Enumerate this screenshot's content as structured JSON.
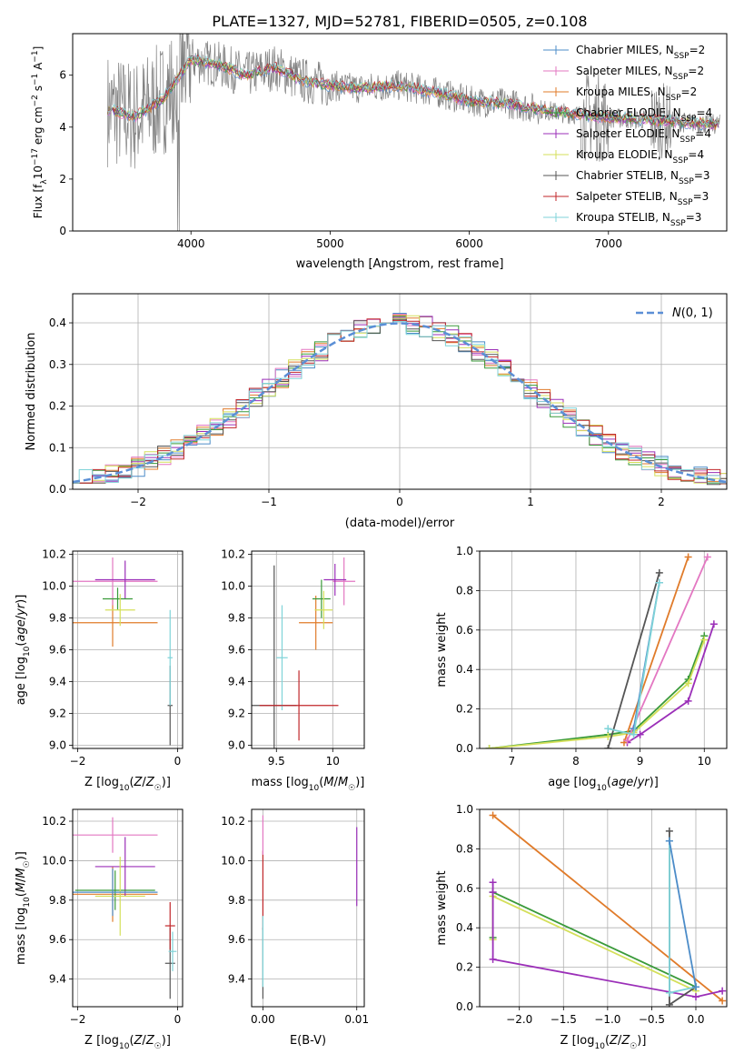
{
  "figure_title": "PLATE=1327, MJD=52781, FIBERID=0505, z=0.108",
  "legend_entries": [
    {
      "label": "Chabrier MILES, N",
      "sub": "SSP",
      "suffix": "=2",
      "color": "#4c8cc8"
    },
    {
      "label": "Salpeter MILES, N",
      "sub": "SSP",
      "suffix": "=2",
      "color": "#e377c2"
    },
    {
      "label": "Kroupa MILES, N",
      "sub": "SSP",
      "suffix": "=2",
      "color": "#e07b2a"
    },
    {
      "label": "Chabrier ELODIE, N",
      "sub": "SSP",
      "suffix": "=4",
      "color": "#3a9a3a"
    },
    {
      "label": "Salpeter ELODIE, N",
      "sub": "SSP",
      "suffix": "=4",
      "color": "#9b2fb8"
    },
    {
      "label": "Kroupa ELODIE, N",
      "sub": "SSP",
      "suffix": "=4",
      "color": "#d4df5a"
    },
    {
      "label": "Chabrier STELIB, N",
      "sub": "SSP",
      "suffix": "=3",
      "color": "#555555"
    },
    {
      "label": "Salpeter STELIB, N",
      "sub": "SSP",
      "suffix": "=3",
      "color": "#c0262a"
    },
    {
      "label": "Kroupa STELIB, N",
      "sub": "SSP",
      "suffix": "=3",
      "color": "#7fd3d8"
    }
  ],
  "chart_data": [
    {
      "id": "spectrum",
      "type": "line",
      "xlabel": "wavelength [Angstrom, rest frame]",
      "ylabel": "Flux [f",
      "ylabel_parts": [
        "Flux [f",
        "λ",
        "10",
        "−17",
        " erg cm",
        "−2",
        " s",
        "−1",
        " A",
        "−1",
        "]"
      ],
      "xlim": [
        3150,
        7850
      ],
      "ylim": [
        0,
        7.6
      ],
      "xticks": [
        4000,
        5000,
        6000,
        7000
      ],
      "yticks": [
        0,
        2,
        4,
        6
      ],
      "grid": false,
      "legend_position": "right",
      "data_color": "#808080",
      "x_start": 3400,
      "x_end": 7800,
      "continuum_points": [
        [
          3400,
          4.7
        ],
        [
          3600,
          4.4
        ],
        [
          3800,
          5.1
        ],
        [
          4000,
          6.6
        ],
        [
          4200,
          6.4
        ],
        [
          4400,
          6.0
        ],
        [
          4600,
          6.3
        ],
        [
          4800,
          5.8
        ],
        [
          5000,
          5.6
        ],
        [
          5200,
          5.5
        ],
        [
          5500,
          5.6
        ],
        [
          5800,
          5.3
        ],
        [
          6000,
          5.0
        ],
        [
          6300,
          4.9
        ],
        [
          6600,
          4.6
        ],
        [
          6900,
          4.4
        ],
        [
          7200,
          4.3
        ],
        [
          7500,
          4.2
        ],
        [
          7800,
          4.1
        ]
      ]
    },
    {
      "id": "residuals",
      "type": "step",
      "xlabel": "(data-model)/error",
      "ylabel": "Normed distribution",
      "xlim": [
        -2.5,
        2.5
      ],
      "ylim": [
        0,
        0.47
      ],
      "xticks": [
        -2,
        -1,
        0,
        1,
        2
      ],
      "yticks": [
        0.0,
        0.1,
        0.2,
        0.3,
        0.4
      ],
      "grid": true,
      "legend": {
        "label": "N(0, 1)",
        "position": "top-right",
        "color": "#5b8fd6"
      },
      "bin_width": 0.1
    },
    {
      "id": "age_vs_z",
      "type": "errorbar",
      "xlabel": "Z [log10(Z/Z☉)]",
      "ylabel": "age [log10(age/yr)]",
      "xlim": [
        -2.1,
        0.1
      ],
      "ylim": [
        8.98,
        10.22
      ],
      "xticks": [
        -2,
        0
      ],
      "yticks": [
        9.0,
        9.2,
        9.4,
        9.6,
        9.8,
        10.0,
        10.2
      ],
      "grid": true,
      "points": [
        {
          "x": -1.3,
          "y": 9.77,
          "xerr": 0.9,
          "yerr": 0.15,
          "color": "#e07b2a"
        },
        {
          "x": -1.3,
          "y": 10.03,
          "xerr": 0.9,
          "yerr": 0.15,
          "color": "#e377c2"
        },
        {
          "x": -1.05,
          "y": 10.04,
          "xerr": 0.6,
          "yerr": 0.12,
          "color": "#9b2fb8"
        },
        {
          "x": -1.2,
          "y": 9.92,
          "xerr": 0.3,
          "yerr": 0.07,
          "color": "#3a9a3a"
        },
        {
          "x": -1.15,
          "y": 9.85,
          "xerr": 0.3,
          "yerr": 0.1,
          "color": "#d4df5a"
        },
        {
          "x": -0.15,
          "y": 9.25,
          "xerr": 0.05,
          "yerr": 0.25,
          "color": "#555555"
        },
        {
          "x": -0.15,
          "y": 9.55,
          "xerr": 0.05,
          "yerr": 0.3,
          "color": "#7fd3d8"
        }
      ]
    },
    {
      "id": "age_vs_mass",
      "type": "errorbar",
      "xlabel": "mass [log10(M/M☉)]",
      "ylabel": "",
      "xlim": [
        9.28,
        10.28
      ],
      "ylim": [
        8.98,
        10.22
      ],
      "xticks": [
        9.5,
        10.0
      ],
      "yticks": [
        9.0,
        9.2,
        9.4,
        9.6,
        9.8,
        10.0,
        10.2
      ],
      "grid": true,
      "points": [
        {
          "x": 9.48,
          "y": 9.25,
          "xerr": 0.2,
          "yerr": 0.88,
          "color": "#555555"
        },
        {
          "x": 9.55,
          "y": 9.55,
          "xerr": 0.05,
          "yerr": 0.33,
          "color": "#7fd3d8"
        },
        {
          "x": 9.7,
          "y": 9.25,
          "xerr": 0.35,
          "yerr": 0.22,
          "color": "#c0262a"
        },
        {
          "x": 9.85,
          "y": 9.77,
          "xerr": 0.15,
          "yerr": 0.17,
          "color": "#e07b2a"
        },
        {
          "x": 9.9,
          "y": 9.92,
          "xerr": 0.08,
          "yerr": 0.12,
          "color": "#3a9a3a"
        },
        {
          "x": 9.92,
          "y": 9.85,
          "xerr": 0.08,
          "yerr": 0.12,
          "color": "#d4df5a"
        },
        {
          "x": 10.1,
          "y": 10.03,
          "xerr": 0.1,
          "yerr": 0.15,
          "color": "#e377c2"
        },
        {
          "x": 10.02,
          "y": 10.04,
          "xerr": 0.1,
          "yerr": 0.1,
          "color": "#9b2fb8"
        }
      ]
    },
    {
      "id": "weight_vs_age",
      "type": "line",
      "xlabel": "age [log10(age/yr)]",
      "ylabel": "mass weight",
      "xlim": [
        6.5,
        10.35
      ],
      "ylim": [
        0,
        1.0
      ],
      "xticks": [
        7,
        8,
        9,
        10
      ],
      "yticks": [
        0.0,
        0.2,
        0.4,
        0.6,
        0.8,
        1.0
      ],
      "grid": true,
      "series": [
        {
          "color": "#3a9a3a",
          "x": [
            6.65,
            8.5,
            8.9,
            9.75,
            10.0
          ],
          "y": [
            0.0,
            0.07,
            0.09,
            0.35,
            0.57
          ]
        },
        {
          "color": "#d4df5a",
          "x": [
            6.65,
            8.5,
            8.9,
            9.75,
            10.0
          ],
          "y": [
            0.0,
            0.06,
            0.08,
            0.33,
            0.55
          ]
        },
        {
          "color": "#9b2fb8",
          "x": [
            8.8,
            9.0,
            9.75,
            10.15
          ],
          "y": [
            0.03,
            0.07,
            0.24,
            0.63
          ]
        },
        {
          "color": "#e07b2a",
          "x": [
            8.75,
            9.75
          ],
          "y": [
            0.03,
            0.97
          ]
        },
        {
          "color": "#e377c2",
          "x": [
            8.8,
            10.05
          ],
          "y": [
            0.04,
            0.97
          ]
        },
        {
          "color": "#555555",
          "x": [
            8.5,
            9.3
          ],
          "y": [
            0.0,
            0.89
          ]
        },
        {
          "color": "#4c8cc8",
          "x": [
            8.9,
            9.3
          ],
          "y": [
            0.1,
            0.84
          ]
        },
        {
          "color": "#7fd3d8",
          "x": [
            8.5,
            8.9,
            9.3
          ],
          "y": [
            0.1,
            0.07,
            0.84
          ]
        }
      ]
    },
    {
      "id": "mass_vs_z",
      "type": "errorbar",
      "xlabel": "Z [log10(Z/Z☉)]",
      "ylabel": "mass [log10(M/M☉)]",
      "xlim": [
        -2.1,
        0.1
      ],
      "ylim": [
        9.26,
        10.26
      ],
      "xticks": [
        -2,
        0
      ],
      "yticks": [
        9.4,
        9.6,
        9.8,
        10.0,
        10.2
      ],
      "grid": true,
      "points": [
        {
          "x": -1.3,
          "y": 9.83,
          "xerr": 0.9,
          "yerr": 0.14,
          "color": "#e07b2a"
        },
        {
          "x": -1.3,
          "y": 10.13,
          "xerr": 0.9,
          "yerr": 0.09,
          "color": "#e377c2"
        },
        {
          "x": -1.05,
          "y": 9.97,
          "xerr": 0.6,
          "yerr": 0.15,
          "color": "#9b2fb8"
        },
        {
          "x": -1.25,
          "y": 9.85,
          "xerr": 0.8,
          "yerr": 0.1,
          "color": "#3a9a3a"
        },
        {
          "x": -1.15,
          "y": 9.82,
          "xerr": 0.5,
          "yerr": 0.2,
          "color": "#d4df5a"
        },
        {
          "x": -1.3,
          "y": 9.84,
          "xerr": 0.9,
          "yerr": 0.12,
          "color": "#4c8cc8"
        },
        {
          "x": -0.15,
          "y": 9.48,
          "xerr": 0.1,
          "yerr": 0.18,
          "color": "#555555"
        },
        {
          "x": -0.15,
          "y": 9.67,
          "xerr": 0.1,
          "yerr": 0.12,
          "color": "#c0262a"
        },
        {
          "x": -0.1,
          "y": 9.54,
          "xerr": 0.08,
          "yerr": 0.1,
          "color": "#7fd3d8"
        }
      ]
    },
    {
      "id": "mass_vs_ebv",
      "type": "errorbar",
      "xlabel": "E(B-V)",
      "ylabel": "",
      "xlim": [
        -0.0012,
        0.0108
      ],
      "ylim": [
        9.26,
        10.26
      ],
      "xticks": [
        0.0,
        0.01
      ],
      "xtick_labels": [
        "0.00",
        "0.01"
      ],
      "yticks": [
        9.4,
        9.6,
        9.8,
        10.0,
        10.2
      ],
      "grid": true,
      "points": [
        {
          "x": 0.0,
          "y": 9.48,
          "xerr": 0,
          "yerr": 0.18,
          "color": "#555555"
        },
        {
          "x": 0.0,
          "y": 9.85,
          "xerr": 0,
          "yerr": 0.2,
          "color": "#c0262a"
        },
        {
          "x": 0.0,
          "y": 10.13,
          "xerr": 0,
          "yerr": 0.1,
          "color": "#e377c2"
        },
        {
          "x": 0.0,
          "y": 9.54,
          "xerr": 0,
          "yerr": 0.18,
          "color": "#7fd3d8"
        },
        {
          "x": 0.01,
          "y": 9.97,
          "xerr": 0,
          "yerr": 0.2,
          "color": "#9b2fb8"
        }
      ]
    },
    {
      "id": "weight_vs_z",
      "type": "line",
      "xlabel": "Z [log10(Z/Z☉)]",
      "ylabel": "mass weight",
      "xlim": [
        -2.45,
        0.35
      ],
      "ylim": [
        0,
        1.0
      ],
      "xticks": [
        -2.0,
        -1.5,
        -1.0,
        -0.5,
        0.0
      ],
      "xtick_labels": [
        "−2.0",
        "−1.5",
        "−1.0",
        "−0.5",
        "0.0"
      ],
      "yticks": [
        0.0,
        0.2,
        0.4,
        0.6,
        0.8,
        1.0
      ],
      "grid": true,
      "series": [
        {
          "color": "#e07b2a",
          "x": [
            -2.3,
            0.3
          ],
          "y": [
            0.97,
            0.03
          ]
        },
        {
          "color": "#3a9a3a",
          "x": [
            -2.3,
            -2.3,
            0.0
          ],
          "y": [
            0.35,
            0.58,
            0.1
          ]
        },
        {
          "color": "#d4df5a",
          "x": [
            -2.3,
            -2.3,
            0.0
          ],
          "y": [
            0.34,
            0.56,
            0.08
          ]
        },
        {
          "color": "#9b2fb8",
          "x": [
            -2.3,
            -2.3,
            -2.3,
            0.0,
            0.3
          ],
          "y": [
            0.63,
            0.58,
            0.24,
            0.05,
            0.08
          ]
        },
        {
          "color": "#555555",
          "x": [
            -0.3,
            -0.3,
            0.0
          ],
          "y": [
            0.89,
            0.01,
            0.1
          ]
        },
        {
          "color": "#7fd3d8",
          "x": [
            -0.3,
            -0.3,
            0.0
          ],
          "y": [
            0.84,
            0.07,
            0.1
          ]
        },
        {
          "color": "#4c8cc8",
          "x": [
            -0.3,
            0.0
          ],
          "y": [
            0.84,
            0.1
          ]
        }
      ]
    }
  ]
}
